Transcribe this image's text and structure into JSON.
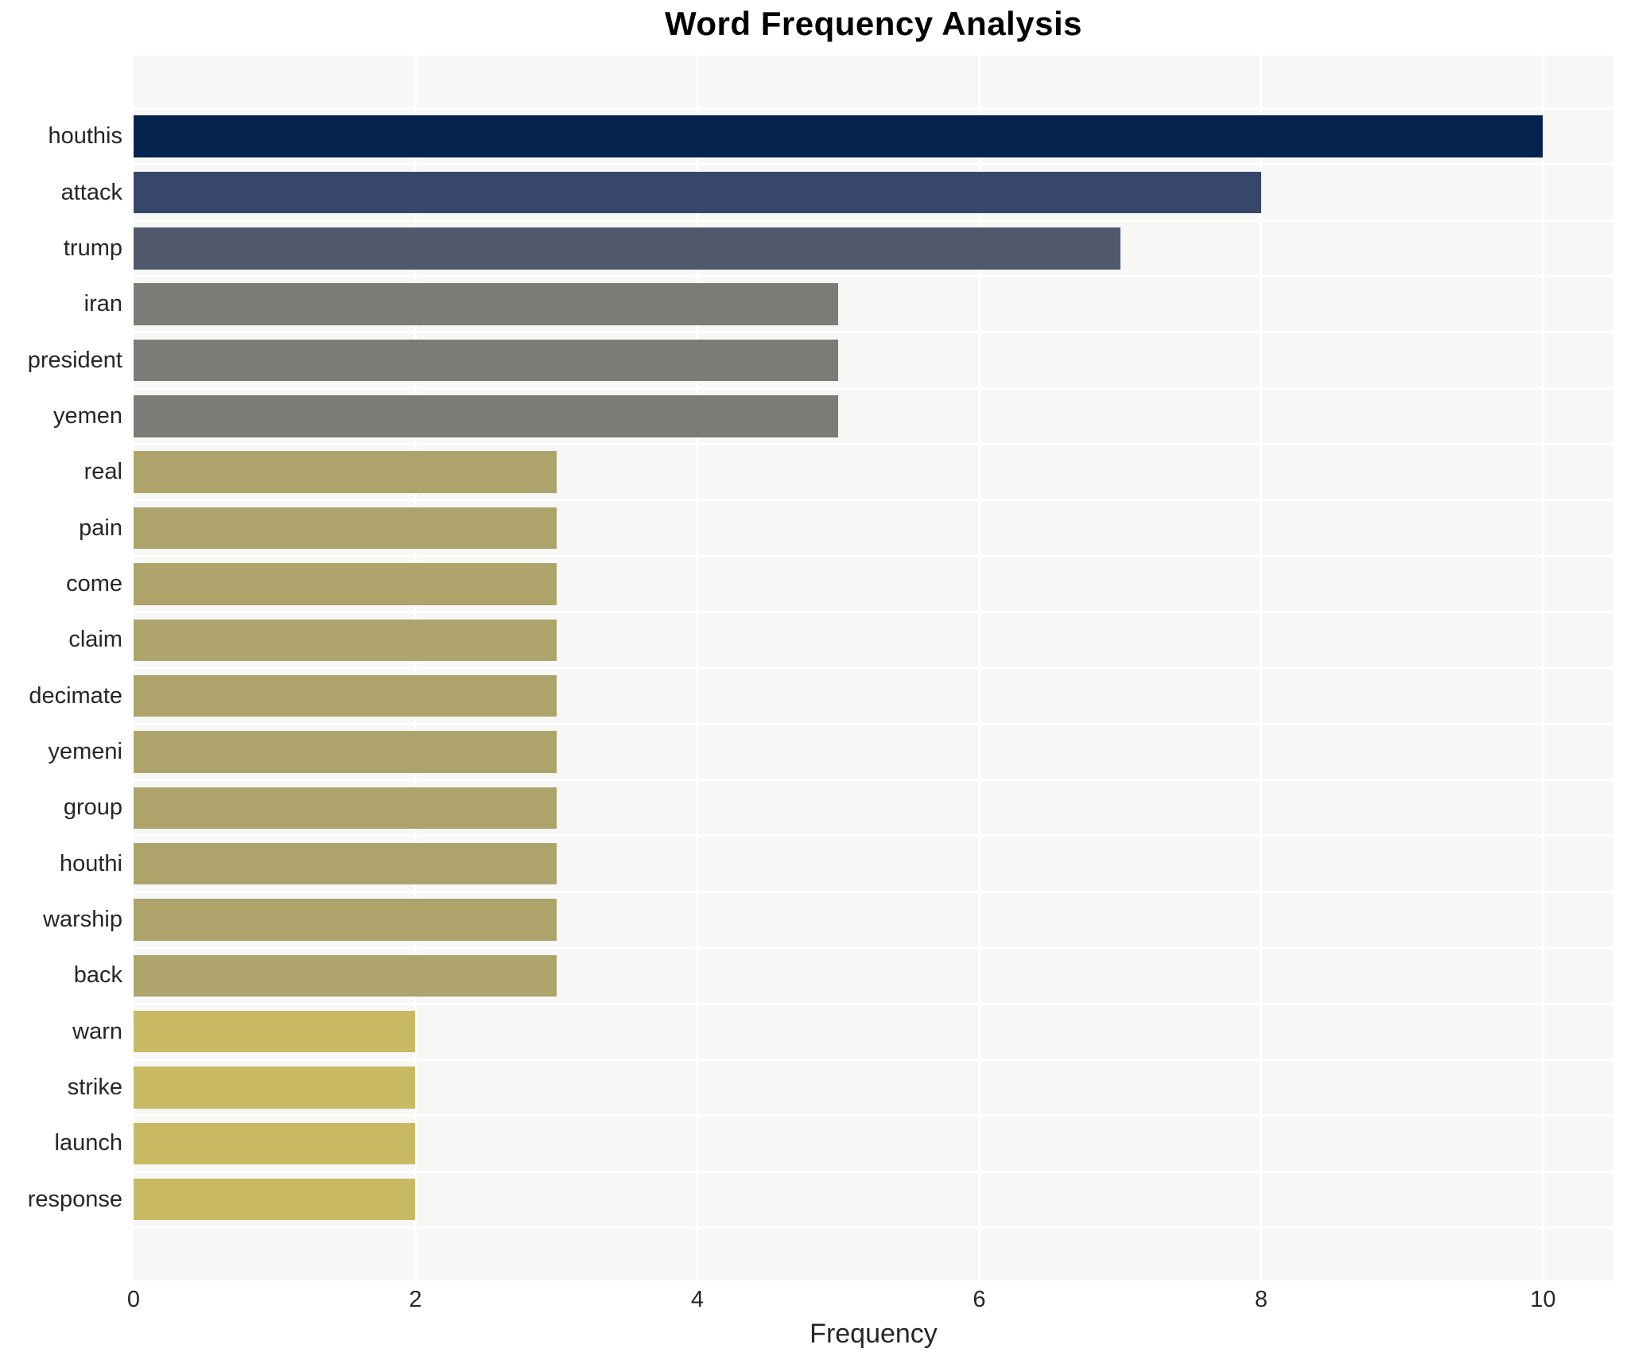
{
  "chart_data": {
    "type": "bar",
    "orientation": "horizontal",
    "title": "Word Frequency Analysis",
    "xlabel": "Frequency",
    "ylabel": "",
    "xlim": [
      0,
      10.5
    ],
    "xticks": [
      0,
      2,
      4,
      6,
      8,
      10
    ],
    "grid": true,
    "legend": false,
    "plot_background": "#f7f7f5",
    "gridline_color": "#ffffff",
    "text_color": "#262626",
    "bars": [
      {
        "label": "houthis",
        "value": 10,
        "color": "#04224e"
      },
      {
        "label": "attack",
        "value": 8,
        "color": "#364769"
      },
      {
        "label": "trump",
        "value": 7,
        "color": "#50586c"
      },
      {
        "label": "iran",
        "value": 5,
        "color": "#7b7b77"
      },
      {
        "label": "president",
        "value": 5,
        "color": "#7b7b77"
      },
      {
        "label": "yemen",
        "value": 5,
        "color": "#7b7b77"
      },
      {
        "label": "real",
        "value": 3,
        "color": "#aea36b"
      },
      {
        "label": "pain",
        "value": 3,
        "color": "#aea36b"
      },
      {
        "label": "come",
        "value": 3,
        "color": "#aea36b"
      },
      {
        "label": "claim",
        "value": 3,
        "color": "#aea36b"
      },
      {
        "label": "decimate",
        "value": 3,
        "color": "#aea36b"
      },
      {
        "label": "yemeni",
        "value": 3,
        "color": "#aea36b"
      },
      {
        "label": "group",
        "value": 3,
        "color": "#aea36b"
      },
      {
        "label": "houthi",
        "value": 3,
        "color": "#aea36b"
      },
      {
        "label": "warship",
        "value": 3,
        "color": "#aea36b"
      },
      {
        "label": "back",
        "value": 3,
        "color": "#aea36b"
      },
      {
        "label": "warn",
        "value": 2,
        "color": "#c9b963"
      },
      {
        "label": "strike",
        "value": 2,
        "color": "#c9b963"
      },
      {
        "label": "launch",
        "value": 2,
        "color": "#c9b963"
      },
      {
        "label": "response",
        "value": 2,
        "color": "#c9b963"
      }
    ]
  }
}
